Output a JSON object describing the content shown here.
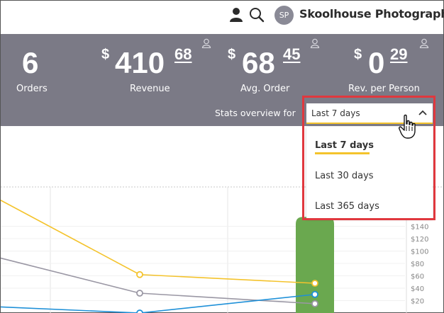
{
  "header": {
    "avatar_initials": "SP",
    "company_name": "Skoolhouse Photography",
    "icons": [
      "user-icon",
      "search-icon"
    ]
  },
  "stats": [
    {
      "id": "orders",
      "whole": "6",
      "cents": "",
      "currency": "",
      "label": "Orders"
    },
    {
      "id": "revenue",
      "whole": "410",
      "cents": "68",
      "currency": "$",
      "label": "Revenue"
    },
    {
      "id": "avg",
      "whole": "68",
      "cents": "45",
      "currency": "$",
      "label": "Avg. Order"
    },
    {
      "id": "rev_person",
      "whole": "0",
      "cents": "29",
      "currency": "$",
      "label": "Rev. per Person"
    }
  ],
  "overview": {
    "label": "Stats overview for",
    "selected": "Last 7 days",
    "options": [
      "Last 7 days",
      "Last 30 days",
      "Last 365 days"
    ]
  },
  "colors": {
    "stats_band": "#7b7a86",
    "accent_yellow": "#f4c32c",
    "highlight_red": "#e0383e",
    "bar_green": "#6aa84f",
    "line_yellow": "#f4c32c",
    "line_gray": "#9a97a4",
    "line_blue": "#1e90d8"
  },
  "chart_data": {
    "type": "line",
    "yticks": [
      "$140",
      "$120",
      "$100",
      "$80",
      "$60",
      "$40",
      "$20"
    ],
    "series": [
      {
        "color": "#f4c32c",
        "values": [
          185,
          62,
          48
        ]
      },
      {
        "color": "#9a97a4",
        "values": [
          90,
          32,
          15
        ]
      },
      {
        "color": "#1e90d8",
        "values": [
          10,
          0,
          30
        ]
      }
    ],
    "bar": {
      "color": "#6aa84f",
      "value": 155
    }
  }
}
